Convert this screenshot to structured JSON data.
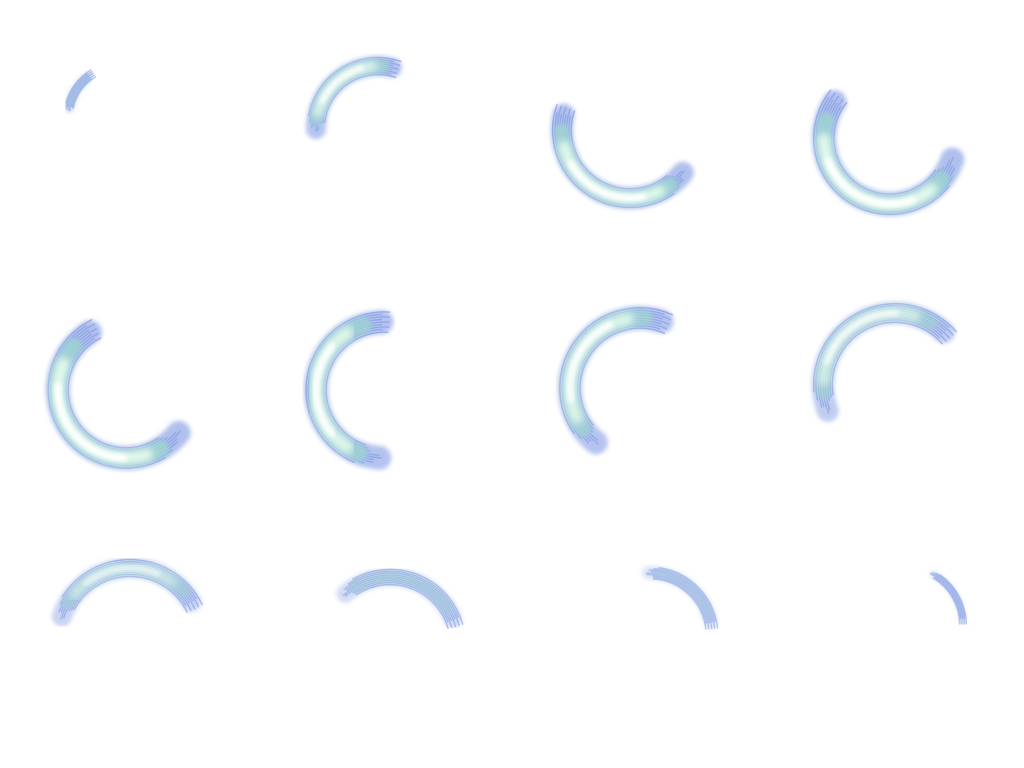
{
  "sprite_sheet": {
    "columns": 4,
    "rows": 3,
    "frames": [
      {
        "index": 1,
        "sweep_deg": 48,
        "intensity": 0.35
      },
      {
        "index": 2,
        "sweep_deg": 110,
        "intensity": 0.9
      },
      {
        "index": 3,
        "sweep_deg": 160,
        "intensity": 1.0
      },
      {
        "index": 4,
        "sweep_deg": 200,
        "intensity": 1.0
      },
      {
        "index": 5,
        "sweep_deg": 205,
        "intensity": 1.0
      },
      {
        "index": 6,
        "sweep_deg": 180,
        "intensity": 0.95
      },
      {
        "index": 7,
        "sweep_deg": 165,
        "intensity": 0.9
      },
      {
        "index": 8,
        "sweep_deg": 160,
        "intensity": 0.75
      },
      {
        "index": 9,
        "sweep_deg": 135,
        "intensity": 0.6
      },
      {
        "index": 10,
        "sweep_deg": 115,
        "intensity": 0.45
      },
      {
        "index": 11,
        "sweep_deg": 85,
        "intensity": 0.25
      },
      {
        "index": 12,
        "sweep_deg": 60,
        "intensity": 0.15
      }
    ],
    "colors": {
      "edge": "#8fa6e6",
      "mid": "#9fd6d0",
      "glow": "#eaffee",
      "core": "#ffffff",
      "background": "#ffffff"
    }
  }
}
